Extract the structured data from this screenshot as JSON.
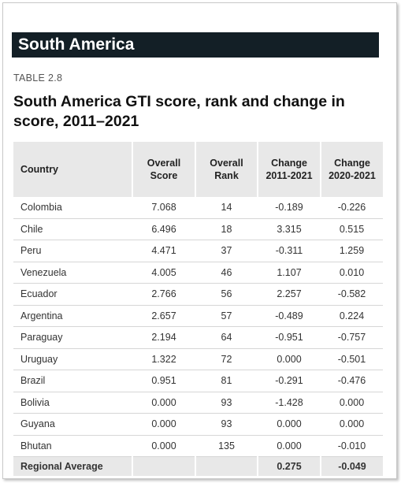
{
  "banner": "South America",
  "table_label": "TABLE 2.8",
  "table_title": "South America GTI score, rank and change in score, 2011–2021",
  "columns": {
    "country": "Country",
    "score_1": "Overall",
    "score_2": "Score",
    "rank_1": "Overall",
    "rank_2": "Rank",
    "chg1_1": "Change",
    "chg1_2": "2011-2021",
    "chg2_1": "Change",
    "chg2_2": "2020-2021"
  },
  "rows": [
    {
      "country": "Colombia",
      "score": "7.068",
      "rank": "14",
      "change_2011_2021": "-0.189",
      "change_2020_2021": "-0.226"
    },
    {
      "country": "Chile",
      "score": "6.496",
      "rank": "18",
      "change_2011_2021": "3.315",
      "change_2020_2021": "0.515"
    },
    {
      "country": "Peru",
      "score": "4.471",
      "rank": "37",
      "change_2011_2021": "-0.311",
      "change_2020_2021": "1.259"
    },
    {
      "country": "Venezuela",
      "score": "4.005",
      "rank": "46",
      "change_2011_2021": "1.107",
      "change_2020_2021": "0.010"
    },
    {
      "country": "Ecuador",
      "score": "2.766",
      "rank": "56",
      "change_2011_2021": "2.257",
      "change_2020_2021": "-0.582"
    },
    {
      "country": "Argentina",
      "score": "2.657",
      "rank": "57",
      "change_2011_2021": "-0.489",
      "change_2020_2021": "0.224"
    },
    {
      "country": "Paraguay",
      "score": "2.194",
      "rank": "64",
      "change_2011_2021": "-0.951",
      "change_2020_2021": "-0.757"
    },
    {
      "country": "Uruguay",
      "score": "1.322",
      "rank": "72",
      "change_2011_2021": "0.000",
      "change_2020_2021": "-0.501"
    },
    {
      "country": "Brazil",
      "score": "0.951",
      "rank": "81",
      "change_2011_2021": "-0.291",
      "change_2020_2021": "-0.476"
    },
    {
      "country": "Bolivia",
      "score": "0.000",
      "rank": "93",
      "change_2011_2021": "-1.428",
      "change_2020_2021": "0.000"
    },
    {
      "country": "Guyana",
      "score": "0.000",
      "rank": "93",
      "change_2011_2021": "0.000",
      "change_2020_2021": "0.000"
    },
    {
      "country": "Bhutan",
      "score": "0.000",
      "rank": "135",
      "change_2011_2021": "0.000",
      "change_2020_2021": "-0.010"
    }
  ],
  "regional_average": {
    "label": "Regional Average",
    "change_2011_2021": "0.275",
    "change_2020_2021": "-0.049"
  },
  "colors": {
    "banner_bg": "#131f26",
    "increase": "#ee3344",
    "decrease": "#2bbfa6",
    "header_bg": "#e8e8e8"
  }
}
